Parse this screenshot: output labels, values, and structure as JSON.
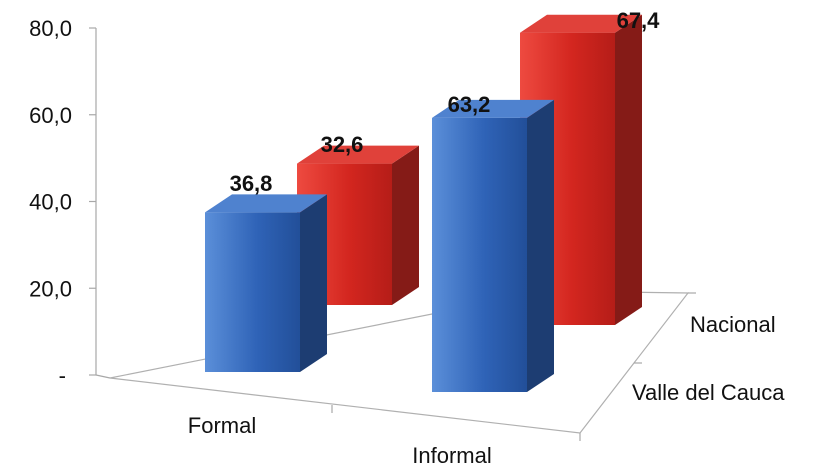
{
  "chart_data": {
    "type": "bar",
    "categories": [
      "Formal",
      "Informal"
    ],
    "series": [
      {
        "name": "Valle del Cauca",
        "values": [
          36.8,
          63.2
        ],
        "labels": [
          "36,8",
          "63,2"
        ],
        "color": "#2e63b8"
      },
      {
        "name": "Nacional",
        "values": [
          32.6,
          67.4
        ],
        "labels": [
          "32,6",
          "67,4"
        ],
        "color": "#d62b25"
      }
    ],
    "y_ticks": [
      "-",
      "20,0",
      "40,0",
      "60,0",
      "80,0"
    ],
    "ylim": [
      0,
      80
    ],
    "grid": false,
    "style": "3d-column"
  }
}
